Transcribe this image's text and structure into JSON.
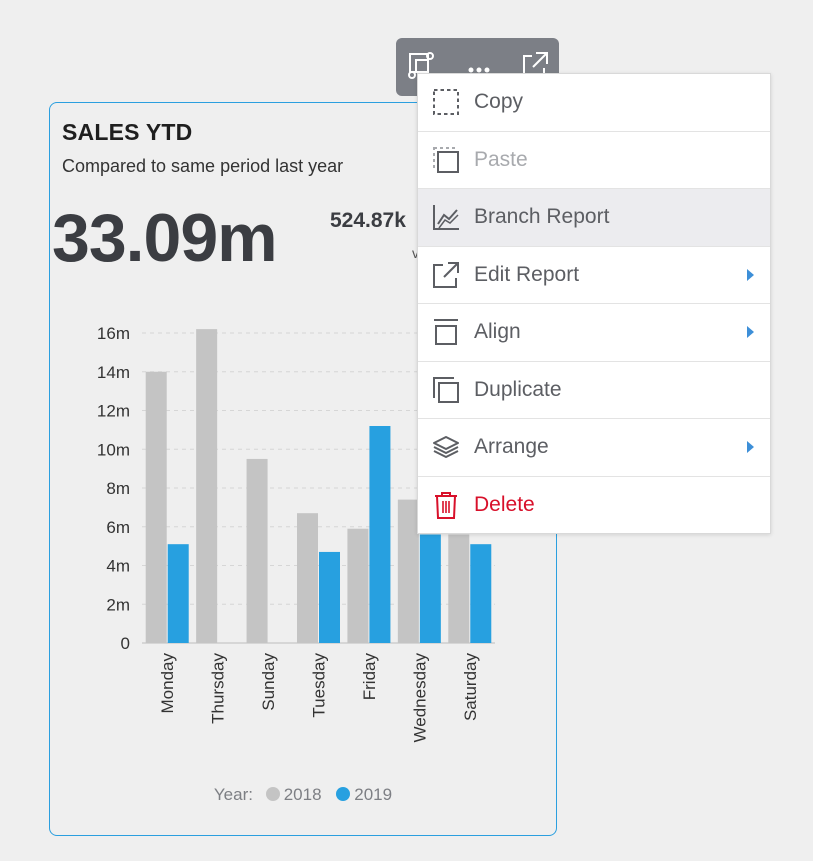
{
  "card": {
    "title": "SALES YTD",
    "subtitle": "Compared to same period last year",
    "big_value": "33.09m",
    "secondary_value": "524.87k",
    "vs_text": "vs"
  },
  "chart_data": {
    "type": "bar",
    "categories": [
      "Monday",
      "Thursday",
      "Sunday",
      "Tuesday",
      "Friday",
      "Wednesday",
      "Saturday"
    ],
    "series": [
      {
        "name": "2018",
        "values": [
          14.0,
          16.2,
          9.5,
          6.7,
          5.9,
          7.4,
          5.6
        ],
        "color": "#c4c4c4"
      },
      {
        "name": "2019",
        "values": [
          5.1,
          0,
          0,
          4.7,
          11.2,
          5.6,
          5.1
        ],
        "color": "#27a0e0"
      }
    ],
    "y_ticks": [
      "0",
      "2m",
      "4m",
      "6m",
      "8m",
      "10m",
      "12m",
      "14m",
      "16m"
    ],
    "ylim": [
      0,
      16
    ],
    "grid": true,
    "legend": {
      "title": "Year:",
      "position": "bottom"
    }
  },
  "toolbar": {
    "icons": [
      "component-icon",
      "more-icon",
      "expand-icon"
    ]
  },
  "menu": {
    "items": [
      {
        "label": "Copy",
        "icon": "copy-icon",
        "state": "normal",
        "submenu": false
      },
      {
        "label": "Paste",
        "icon": "paste-icon",
        "state": "disabled",
        "submenu": false
      },
      {
        "label": "Branch Report",
        "icon": "chart-icon",
        "state": "highlighted",
        "submenu": false
      },
      {
        "label": "Edit Report",
        "icon": "external-link-icon",
        "state": "normal",
        "submenu": true
      },
      {
        "label": "Align",
        "icon": "align-icon",
        "state": "normal",
        "submenu": true
      },
      {
        "label": "Duplicate",
        "icon": "duplicate-icon",
        "state": "normal",
        "submenu": false
      },
      {
        "label": "Arrange",
        "icon": "layers-icon",
        "state": "normal",
        "submenu": true
      },
      {
        "label": "Delete",
        "icon": "trash-icon",
        "state": "danger",
        "submenu": false
      }
    ]
  },
  "colors": {
    "accent": "#2b9fdf",
    "series_2018": "#c4c4c4",
    "series_2019": "#27a0e0",
    "danger": "#d8102a",
    "toolbar_bg": "#7c7f86"
  }
}
